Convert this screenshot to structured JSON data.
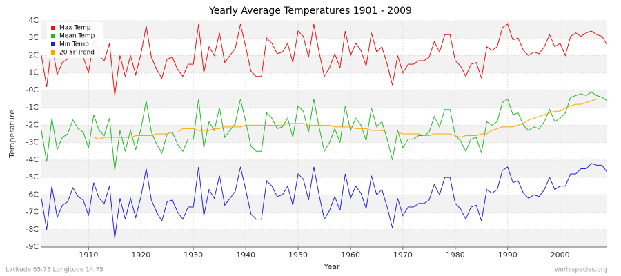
{
  "chart_data": {
    "type": "line",
    "title": "Yearly Average Temperatures 1901 - 2009",
    "xlabel": "Year",
    "ylabel": "Temperature",
    "footer_left": "Latitude 65.75 Longitude 14.75",
    "footer_right": "worldspecies.org",
    "legend": "top-left",
    "grid": true,
    "xlim": [
      1901,
      2009
    ],
    "xticks": [
      1910,
      1920,
      1930,
      1940,
      1950,
      1960,
      1970,
      1980,
      1990,
      2000
    ],
    "ylim": [
      -9,
      4
    ],
    "yticks": [
      {
        "value": -9,
        "label": "-9C"
      },
      {
        "value": -8,
        "label": "-8C"
      },
      {
        "value": -7,
        "label": "-7C"
      },
      {
        "value": -6,
        "label": "-6C"
      },
      {
        "value": -5,
        "label": "-5C"
      },
      {
        "value": -4,
        "label": "-4C"
      },
      {
        "value": -3,
        "label": "-3C"
      },
      {
        "value": -2,
        "label": "-2C"
      },
      {
        "value": -1,
        "label": "-1C"
      },
      {
        "value": 0,
        "label": "-0C"
      },
      {
        "value": 1,
        "label": "1C"
      },
      {
        "value": 2,
        "label": "2C"
      },
      {
        "value": 3,
        "label": "3C"
      },
      {
        "value": 4,
        "label": "4C"
      }
    ],
    "x": [
      1901,
      1902,
      1903,
      1904,
      1905,
      1906,
      1907,
      1908,
      1909,
      1910,
      1911,
      1912,
      1913,
      1914,
      1915,
      1916,
      1917,
      1918,
      1919,
      1920,
      1921,
      1922,
      1923,
      1924,
      1925,
      1926,
      1927,
      1928,
      1929,
      1930,
      1931,
      1932,
      1933,
      1934,
      1935,
      1936,
      1937,
      1938,
      1939,
      1940,
      1941,
      1942,
      1943,
      1944,
      1945,
      1946,
      1947,
      1948,
      1949,
      1950,
      1951,
      1952,
      1953,
      1954,
      1955,
      1956,
      1957,
      1958,
      1959,
      1960,
      1961,
      1962,
      1963,
      1964,
      1965,
      1966,
      1967,
      1968,
      1969,
      1970,
      1971,
      1972,
      1973,
      1974,
      1975,
      1976,
      1977,
      1978,
      1979,
      1980,
      1981,
      1982,
      1983,
      1984,
      1985,
      1986,
      1987,
      1988,
      1989,
      1990,
      1991,
      1992,
      1993,
      1994,
      1995,
      1996,
      1997,
      1998,
      1999,
      2000,
      2001,
      2002,
      2003,
      2004,
      2005,
      2006,
      2007,
      2008,
      2009
    ],
    "series": [
      {
        "name": "Max Temp",
        "color": "#ee1111",
        "values": [
          2.0,
          0.2,
          2.7,
          0.9,
          1.6,
          1.8,
          2.6,
          2.1,
          1.9,
          1.0,
          2.9,
          2.0,
          1.7,
          2.7,
          -0.3,
          2.0,
          0.8,
          2.0,
          0.9,
          2.1,
          3.7,
          1.9,
          1.2,
          0.7,
          1.8,
          1.9,
          1.2,
          0.8,
          1.5,
          1.5,
          3.8,
          1.0,
          2.5,
          2.0,
          3.3,
          1.6,
          2.0,
          2.4,
          3.8,
          2.5,
          1.1,
          0.8,
          0.8,
          3.0,
          2.7,
          2.1,
          2.2,
          2.7,
          1.6,
          3.4,
          3.1,
          1.9,
          3.8,
          2.2,
          0.8,
          1.3,
          2.1,
          1.3,
          3.4,
          2.0,
          2.7,
          2.3,
          1.4,
          3.3,
          2.2,
          2.5,
          1.5,
          0.3,
          2.0,
          1.0,
          1.5,
          1.5,
          1.7,
          1.7,
          1.9,
          2.8,
          2.2,
          3.2,
          3.2,
          1.7,
          1.4,
          0.8,
          1.5,
          1.6,
          0.7,
          2.5,
          2.3,
          2.5,
          3.6,
          3.8,
          2.9,
          3.0,
          2.3,
          2.0,
          2.2,
          2.1,
          2.5,
          3.2,
          2.5,
          2.7,
          2.0,
          3.1,
          3.3,
          3.1,
          3.3,
          3.4,
          3.2,
          3.1,
          2.6
        ]
      },
      {
        "name": "Mean Temp",
        "color": "#22bb22",
        "values": [
          -2.3,
          -4.1,
          -1.6,
          -3.4,
          -2.7,
          -2.5,
          -1.7,
          -2.2,
          -2.4,
          -3.3,
          -1.4,
          -2.3,
          -2.6,
          -1.6,
          -4.6,
          -2.3,
          -3.5,
          -2.3,
          -3.4,
          -2.2,
          -0.6,
          -2.4,
          -3.1,
          -3.6,
          -2.5,
          -2.4,
          -3.1,
          -3.5,
          -2.8,
          -2.8,
          -0.5,
          -3.3,
          -1.8,
          -2.3,
          -1.0,
          -2.7,
          -2.3,
          -1.9,
          -0.5,
          -1.8,
          -3.2,
          -3.5,
          -3.5,
          -1.3,
          -1.6,
          -2.2,
          -2.1,
          -1.6,
          -2.7,
          -0.9,
          -1.2,
          -2.4,
          -0.5,
          -2.1,
          -3.5,
          -3.0,
          -2.2,
          -3.0,
          -0.9,
          -2.3,
          -1.6,
          -2.0,
          -2.9,
          -1.0,
          -2.1,
          -1.8,
          -2.8,
          -4.0,
          -2.3,
          -3.3,
          -2.8,
          -2.8,
          -2.6,
          -2.6,
          -2.4,
          -1.5,
          -2.1,
          -1.1,
          -1.1,
          -2.6,
          -2.9,
          -3.5,
          -2.8,
          -2.7,
          -3.6,
          -1.8,
          -2.0,
          -1.8,
          -0.7,
          -0.5,
          -1.4,
          -1.3,
          -2.0,
          -2.3,
          -2.1,
          -2.2,
          -1.8,
          -1.1,
          -1.8,
          -1.6,
          -1.3,
          -0.4,
          -0.3,
          -0.2,
          -0.3,
          -0.1,
          -0.3,
          -0.4,
          -0.6
        ]
      },
      {
        "name": "Min Temp",
        "color": "#2222dd",
        "values": [
          -6.2,
          -8.0,
          -5.5,
          -7.3,
          -6.6,
          -6.4,
          -5.6,
          -6.1,
          -6.3,
          -7.2,
          -5.3,
          -6.2,
          -6.5,
          -5.5,
          -8.5,
          -6.2,
          -7.4,
          -6.2,
          -7.3,
          -6.1,
          -4.5,
          -6.3,
          -7.0,
          -7.5,
          -6.4,
          -6.3,
          -7.0,
          -7.4,
          -6.7,
          -6.7,
          -4.4,
          -7.2,
          -5.7,
          -6.2,
          -4.9,
          -6.6,
          -6.2,
          -5.8,
          -4.4,
          -5.7,
          -7.1,
          -7.4,
          -7.4,
          -5.2,
          -5.5,
          -6.1,
          -6.0,
          -5.5,
          -6.6,
          -4.8,
          -5.1,
          -6.3,
          -4.4,
          -6.0,
          -7.4,
          -6.9,
          -6.1,
          -6.9,
          -4.8,
          -6.2,
          -5.5,
          -5.9,
          -6.8,
          -4.9,
          -6.0,
          -5.7,
          -6.7,
          -7.9,
          -6.2,
          -7.2,
          -6.7,
          -6.7,
          -6.5,
          -6.5,
          -6.3,
          -5.4,
          -6.0,
          -5.0,
          -5.0,
          -6.5,
          -6.8,
          -7.4,
          -6.7,
          -6.6,
          -7.5,
          -5.7,
          -5.9,
          -5.7,
          -4.6,
          -4.4,
          -5.3,
          -5.2,
          -5.9,
          -6.2,
          -6.0,
          -6.1,
          -5.7,
          -5.0,
          -5.7,
          -5.5,
          -5.5,
          -4.8,
          -4.8,
          -4.5,
          -4.5,
          -4.2,
          -4.3,
          -4.3,
          -4.7
        ]
      },
      {
        "name": "20 Yr Trend",
        "color": "#ffa500",
        "values": [
          null,
          null,
          null,
          null,
          null,
          null,
          null,
          null,
          null,
          null,
          -2.7,
          -2.8,
          -2.7,
          -2.7,
          -2.7,
          -2.7,
          -2.7,
          -2.7,
          -2.6,
          -2.6,
          -2.6,
          -2.6,
          -2.5,
          -2.5,
          -2.5,
          -2.4,
          -2.4,
          -2.2,
          -2.2,
          -2.2,
          -2.3,
          -2.3,
          -2.3,
          -2.2,
          -2.2,
          -2.1,
          -2.1,
          -2.1,
          -2.1,
          -2.0,
          -2.0,
          -2.0,
          -2.0,
          -2.0,
          -2.0,
          -2.0,
          -2.0,
          -1.9,
          -1.9,
          -1.9,
          -1.9,
          -2.0,
          -2.0,
          -2.0,
          -2.0,
          -2.0,
          -2.1,
          -2.1,
          -2.1,
          -2.1,
          -2.2,
          -2.2,
          -2.2,
          -2.3,
          -2.3,
          -2.3,
          -2.4,
          -2.4,
          -2.4,
          -2.5,
          -2.5,
          -2.5,
          -2.5,
          -2.6,
          -2.6,
          -2.5,
          -2.5,
          -2.5,
          -2.5,
          -2.6,
          -2.7,
          -2.6,
          -2.6,
          -2.6,
          -2.5,
          -2.5,
          -2.3,
          -2.2,
          -2.1,
          -2.1,
          -2.1,
          -2.0,
          -1.9,
          -1.7,
          -1.6,
          -1.5,
          -1.4,
          -1.3,
          -1.2,
          -1.2,
          -1.0,
          -0.9,
          -0.8,
          -0.8,
          -0.7,
          -0.6,
          -0.5,
          null,
          null
        ]
      }
    ]
  }
}
